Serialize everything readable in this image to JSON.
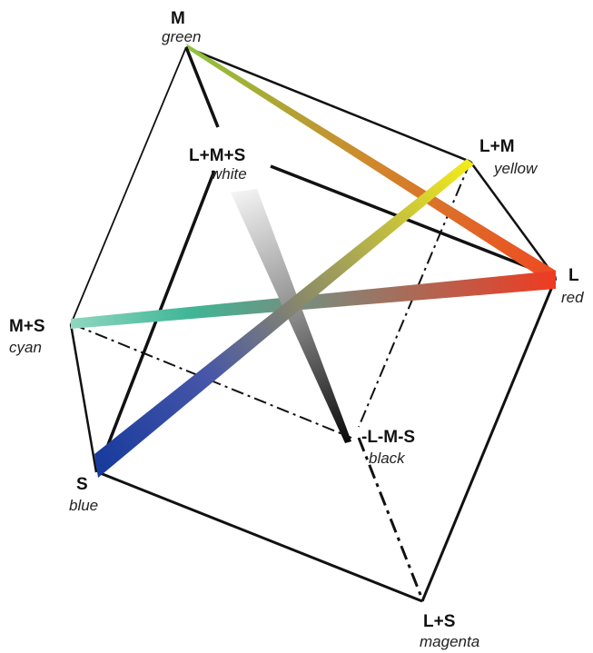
{
  "vertices": {
    "green": {
      "main": "M",
      "sub": "green"
    },
    "white": {
      "main": "L+M+S",
      "sub": "white"
    },
    "yellow": {
      "main": "L+M",
      "sub": "yellow"
    },
    "red": {
      "main": "L",
      "sub": "red"
    },
    "cyan": {
      "main": "M+S",
      "sub": "cyan"
    },
    "black": {
      "main": "-L-M-S",
      "sub": "black"
    },
    "blue": {
      "main": "S",
      "sub": "blue"
    },
    "magenta": {
      "main": "L+S",
      "sub": "magenta"
    }
  },
  "colors": {
    "green": "#7fbf3a",
    "yellow": "#f2ea1c",
    "red": "#ee3b22",
    "cyan": "#7fd1b8",
    "blue": "#1c3c9c",
    "white": "#ffffff",
    "black": "#111111"
  }
}
